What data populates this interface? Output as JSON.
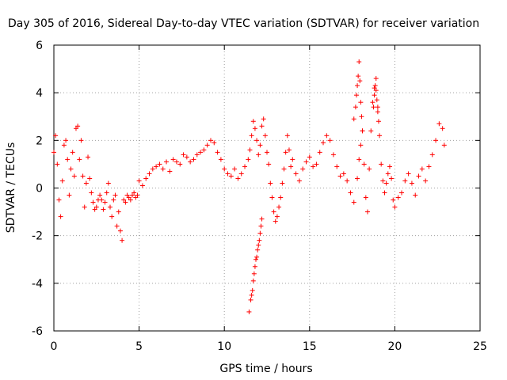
{
  "chart_data": {
    "type": "scatter",
    "title": "Day 305 of 2016, Sidereal Day-to-day VTEC variation (SDTVAR) for receiver variation",
    "xlabel": "GPS time / hours",
    "ylabel": "SDTVAR / TECUs",
    "xlim": [
      0,
      25
    ],
    "ylim": [
      -6,
      6
    ],
    "xticks": [
      0,
      5,
      10,
      15,
      20,
      25
    ],
    "yticks": [
      -6,
      -4,
      -2,
      0,
      2,
      4,
      6
    ],
    "xtick_labels": [
      "0",
      "5",
      "10",
      "15",
      "20",
      "25"
    ],
    "ytick_labels": [
      "-6",
      "-4",
      "-2",
      "0",
      "2",
      "4",
      "6"
    ],
    "grid": true,
    "marker": "+",
    "color": "#ff0000",
    "series": [
      {
        "name": "SDTVAR",
        "x": [
          0.0,
          0.1,
          0.2,
          0.3,
          0.4,
          0.5,
          0.6,
          0.7,
          0.8,
          0.9,
          1.0,
          1.1,
          1.2,
          1.3,
          1.4,
          1.5,
          1.6,
          1.7,
          1.8,
          1.9,
          2.0,
          2.1,
          2.2,
          2.3,
          2.4,
          2.5,
          2.6,
          2.7,
          2.8,
          2.9,
          3.0,
          3.1,
          3.2,
          3.3,
          3.4,
          3.5,
          3.6,
          3.7,
          3.8,
          3.9,
          4.0,
          4.1,
          4.2,
          4.3,
          4.4,
          4.5,
          4.6,
          4.7,
          4.8,
          4.9,
          5.0,
          5.2,
          5.4,
          5.6,
          5.8,
          6.0,
          6.2,
          6.4,
          6.6,
          6.8,
          7.0,
          7.2,
          7.4,
          7.6,
          7.8,
          8.0,
          8.2,
          8.4,
          8.6,
          8.8,
          9.0,
          9.2,
          9.4,
          9.6,
          9.8,
          10.0,
          10.2,
          10.4,
          10.6,
          10.8,
          11.0,
          11.2,
          11.4,
          11.5,
          11.6,
          11.7,
          11.8,
          11.9,
          12.0,
          12.1,
          12.2,
          12.3,
          12.4,
          12.5,
          12.6,
          12.7,
          12.8,
          12.9,
          13.0,
          13.1,
          13.2,
          13.3,
          13.4,
          13.5,
          13.6,
          13.7,
          13.8,
          13.9,
          14.0,
          14.2,
          14.4,
          14.6,
          14.8,
          15.0,
          15.2,
          15.4,
          15.6,
          15.8,
          16.0,
          16.2,
          16.4,
          16.6,
          16.8,
          17.0,
          17.2,
          17.4,
          17.6,
          17.8,
          17.9,
          18.0,
          18.1,
          18.2,
          18.3,
          18.4,
          18.5,
          18.6,
          18.7,
          18.8,
          18.9,
          19.0,
          19.1,
          19.2,
          19.3,
          19.4,
          19.5,
          19.6,
          19.7,
          19.8,
          19.9,
          20.0,
          20.2,
          20.4,
          20.6,
          20.8,
          21.0,
          21.2,
          21.4,
          21.6,
          21.8,
          22.0,
          22.2,
          22.4,
          22.6,
          22.8,
          22.9
        ],
        "y": [
          1.5,
          2.2,
          1.0,
          -0.5,
          -1.2,
          0.3,
          1.8,
          2.0,
          1.2,
          -0.3,
          0.8,
          1.5,
          0.5,
          2.5,
          2.6,
          1.2,
          2.0,
          0.5,
          -0.8,
          0.2,
          1.3,
          0.4,
          -0.2,
          -0.6,
          -0.9,
          -0.8,
          -0.5,
          -0.3,
          -0.5,
          -0.9,
          -0.6,
          -0.2,
          0.2,
          -0.8,
          -1.2,
          -0.5,
          -0.3,
          -1.6,
          -1.0,
          -1.8,
          -2.2,
          -0.5,
          -0.6,
          -0.3,
          -0.4,
          -0.5,
          -0.3,
          -0.2,
          -0.4,
          -0.3,
          0.3,
          0.1,
          0.4,
          0.6,
          0.8,
          0.9,
          1.0,
          0.8,
          1.1,
          0.7,
          1.2,
          1.1,
          1.0,
          1.4,
          1.3,
          1.1,
          1.2,
          1.4,
          1.5,
          1.6,
          1.8,
          2.0,
          1.9,
          1.5,
          1.2,
          0.8,
          0.6,
          0.5,
          0.8,
          0.4,
          0.6,
          0.9,
          1.2,
          1.6,
          2.2,
          2.8,
          2.5,
          2.0,
          1.4,
          1.8,
          2.6,
          2.9,
          2.2,
          1.5,
          1.0,
          0.2,
          -0.4,
          -1.0,
          -1.4,
          -1.2,
          -0.8,
          -0.4,
          0.2,
          0.8,
          1.5,
          2.2,
          1.6,
          0.9,
          1.2,
          0.6,
          0.3,
          0.8,
          1.1,
          1.3,
          0.9,
          1.0,
          1.5,
          1.9,
          2.2,
          2.0,
          1.4,
          0.9,
          0.5,
          0.6,
          0.3,
          -0.2,
          -0.6,
          0.4,
          1.2,
          1.8,
          2.4,
          1.0,
          -0.4,
          -1.0,
          0.8,
          2.4,
          3.6,
          4.2,
          4.6,
          3.4,
          2.2,
          1.0,
          0.3,
          -0.2,
          0.2,
          0.6,
          0.9,
          0.4,
          -0.5,
          -0.8,
          -0.4,
          -0.2,
          0.3,
          0.6,
          0.2,
          -0.3,
          0.5,
          0.8,
          0.3,
          0.9,
          1.4,
          2.0,
          2.7,
          2.5,
          1.8
        ],
        "x_segments": [
          [
            11.45,
            11.55,
            11.6,
            11.65,
            11.7,
            11.75,
            11.8,
            11.85,
            11.9,
            11.95,
            12.0,
            12.05,
            12.1,
            12.15,
            12.2
          ],
          [
            17.6,
            17.7,
            17.75,
            17.8,
            17.85,
            17.9,
            17.95,
            18.0,
            18.05,
            18.1
          ],
          [
            18.75,
            18.8,
            18.85,
            18.9,
            18.95,
            19.0,
            19.05
          ]
        ],
        "y_segments": [
          [
            -5.2,
            -4.7,
            -4.5,
            -4.3,
            -3.9,
            -3.6,
            -3.3,
            -3.0,
            -2.9,
            -2.6,
            -2.4,
            -2.2,
            -1.9,
            -1.6,
            -1.3
          ],
          [
            2.9,
            3.4,
            3.9,
            4.3,
            4.7,
            5.3,
            4.5,
            3.6,
            3.0,
            2.4
          ],
          [
            3.4,
            3.9,
            4.3,
            4.1,
            3.7,
            3.2,
            2.8
          ]
        ]
      }
    ]
  }
}
